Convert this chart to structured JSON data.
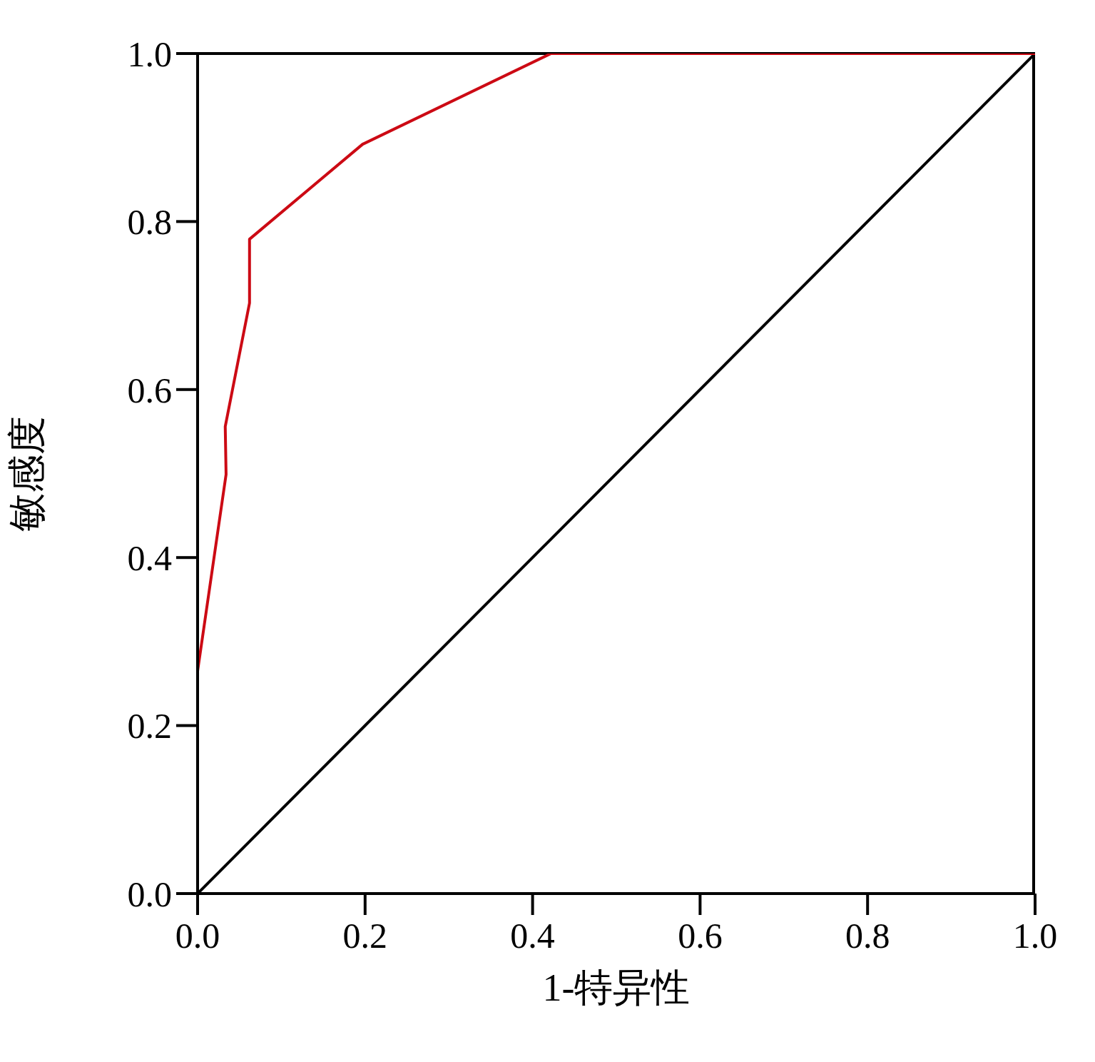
{
  "chart_data": {
    "type": "line",
    "xlabel": "1-特异性",
    "ylabel": "敏感度",
    "xlim": [
      0,
      1
    ],
    "ylim": [
      0,
      1
    ],
    "xticks": [
      {
        "value": 0,
        "label": "0.0"
      },
      {
        "value": 0.2,
        "label": "0.2"
      },
      {
        "value": 0.4,
        "label": "0.4"
      },
      {
        "value": 0.6,
        "label": "0.6"
      },
      {
        "value": 0.8,
        "label": "0.8"
      },
      {
        "value": 1,
        "label": "1.0"
      }
    ],
    "yticks": [
      {
        "value": 0,
        "label": "0.0"
      },
      {
        "value": 0.2,
        "label": "0.2"
      },
      {
        "value": 0.4,
        "label": "0.4"
      },
      {
        "value": 0.6,
        "label": "0.6"
      },
      {
        "value": 0.8,
        "label": "0.8"
      },
      {
        "value": 1,
        "label": "1.0"
      }
    ],
    "grid": false,
    "marker": "none",
    "line_style": "solid",
    "series": [
      {
        "color": "#cc0a14",
        "x": [
          0,
          0,
          0.034,
          0.033,
          0.062,
          0.062,
          0.197,
          0.422,
          1
        ],
        "values": [
          0,
          0.265,
          0.499,
          0.556,
          0.703,
          0.779,
          0.892,
          1,
          1
        ]
      },
      {
        "color": "#000000",
        "x": [
          0,
          1
        ],
        "values": [
          0,
          1
        ]
      }
    ]
  }
}
